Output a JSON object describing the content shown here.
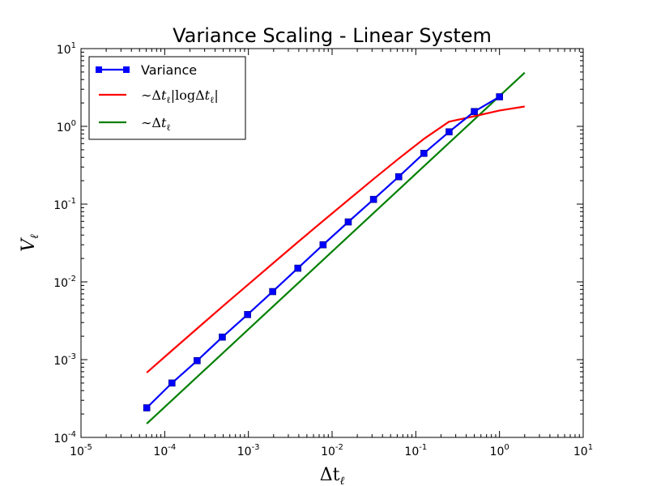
{
  "chart_data": {
    "type": "line",
    "title": "Variance Scaling - Linear System",
    "xlabel": "Δt",
    "xlabel_sub": "ℓ",
    "ylabel": "V",
    "ylabel_sub": "ℓ",
    "x_scale": "log",
    "y_scale": "log",
    "xlim": [
      1e-05,
      10
    ],
    "ylim": [
      0.0001,
      10
    ],
    "x_ticks": [
      {
        "base": "10",
        "exp": "-5",
        "value": 1e-05
      },
      {
        "base": "10",
        "exp": "-4",
        "value": 0.0001
      },
      {
        "base": "10",
        "exp": "-3",
        "value": 0.001
      },
      {
        "base": "10",
        "exp": "-2",
        "value": 0.01
      },
      {
        "base": "10",
        "exp": "-1",
        "value": 0.1
      },
      {
        "base": "10",
        "exp": "0",
        "value": 1
      },
      {
        "base": "10",
        "exp": "1",
        "value": 10
      }
    ],
    "y_ticks": [
      {
        "base": "10",
        "exp": "-4",
        "value": 0.0001
      },
      {
        "base": "10",
        "exp": "-3",
        "value": 0.001
      },
      {
        "base": "10",
        "exp": "-2",
        "value": 0.01
      },
      {
        "base": "10",
        "exp": "-1",
        "value": 0.1
      },
      {
        "base": "10",
        "exp": "0",
        "value": 1
      },
      {
        "base": "10",
        "exp": "1",
        "value": 10
      }
    ],
    "grid": false,
    "legend_position": "top-left",
    "series": [
      {
        "name": "Variance",
        "color": "#0000ff",
        "marker": "square",
        "x": [
          6.1e-05,
          0.000122,
          0.000244,
          0.000488,
          0.000977,
          0.00195,
          0.0039,
          0.0078,
          0.0156,
          0.03125,
          0.0625,
          0.125,
          0.25,
          0.5,
          1.0
        ],
        "y": [
          0.00024,
          0.0005,
          0.00097,
          0.00195,
          0.0038,
          0.0075,
          0.015,
          0.03,
          0.059,
          0.115,
          0.225,
          0.45,
          0.85,
          1.55,
          2.4
        ]
      },
      {
        "name": "~Δt_ℓ|logΔt_ℓ|",
        "legend_parts": [
          {
            "t": "∼Δ"
          },
          {
            "t": "t"
          },
          {
            "t": "ℓ",
            "sub": true
          },
          {
            "t": "|logΔ"
          },
          {
            "t": "t"
          },
          {
            "t": "ℓ",
            "sub": true
          },
          {
            "t": "|"
          }
        ],
        "color": "#ff0000",
        "marker": "none",
        "x": [
          6.1e-05,
          0.000122,
          0.000244,
          0.000488,
          0.000977,
          0.00195,
          0.0039,
          0.0078,
          0.0156,
          0.03125,
          0.0625,
          0.125,
          0.25,
          0.5,
          1.0,
          2.0
        ],
        "y": [
          0.00068,
          0.00131,
          0.00251,
          0.0048,
          0.0091,
          0.0172,
          0.0325,
          0.0608,
          0.113,
          0.21,
          0.385,
          0.69,
          1.15,
          1.35,
          1.6,
          1.8
        ]
      },
      {
        "name": "~Δt_ℓ",
        "legend_parts": [
          {
            "t": "∼Δ"
          },
          {
            "t": "t"
          },
          {
            "t": "ℓ",
            "sub": true
          }
        ],
        "color": "#008000",
        "marker": "none",
        "x": [
          6.1e-05,
          2.0
        ],
        "y": [
          0.00015,
          4.9
        ]
      }
    ]
  }
}
